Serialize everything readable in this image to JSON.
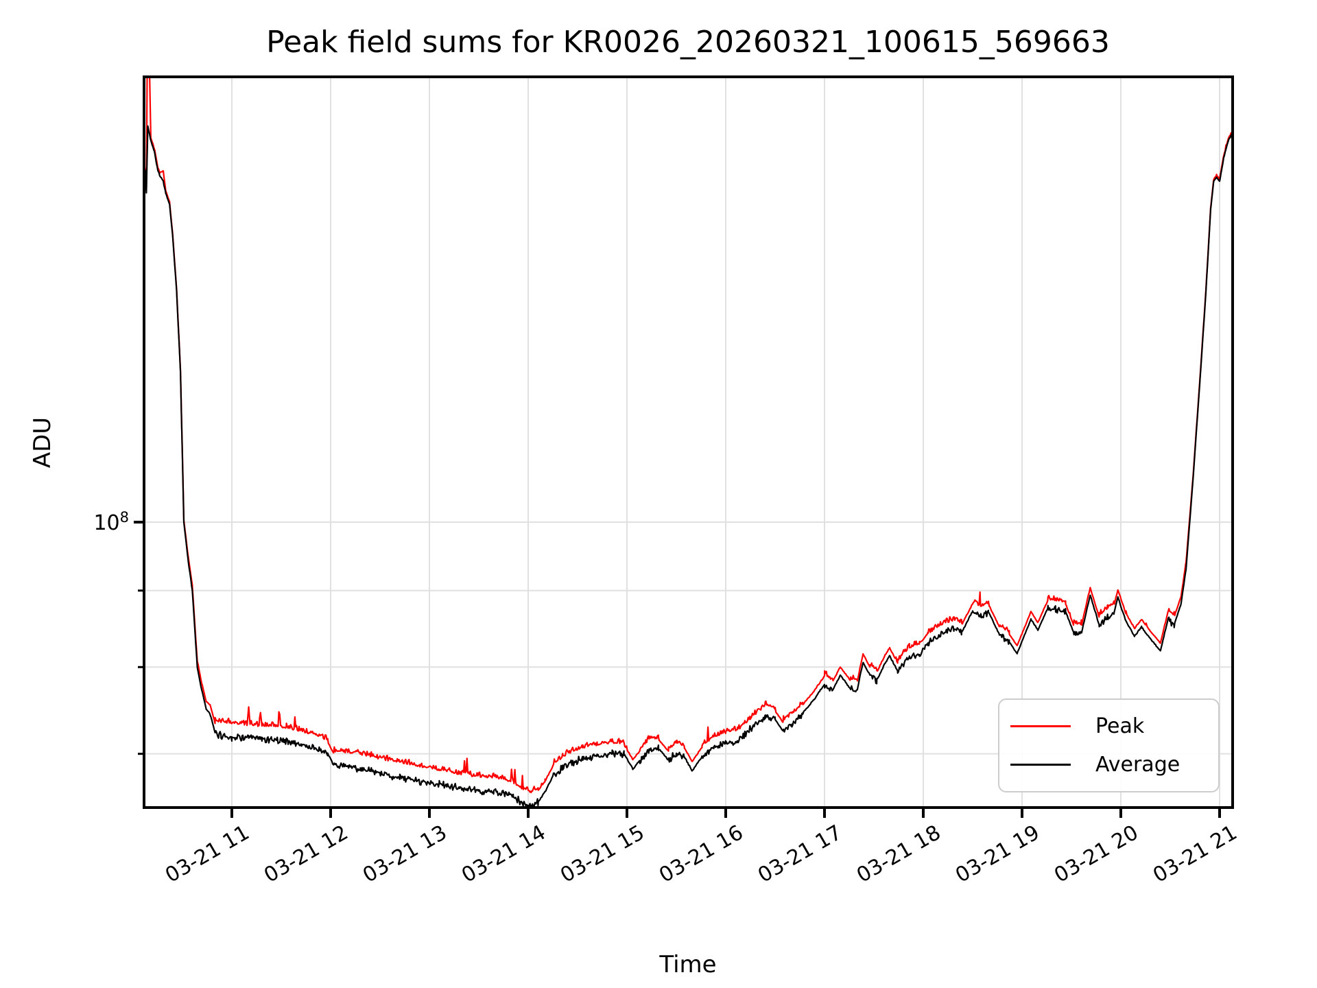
{
  "chart_data": {
    "type": "line",
    "title": "Peak field sums for KR0026_20260321_100615_569663",
    "xlabel": "Time",
    "ylabel": "ADU",
    "yscale": "log",
    "grid": true,
    "ylim": [
      64400000,
      198500000
    ],
    "xlim_hours": [
      10.108,
      21.132
    ],
    "x_tick_hours": [
      11,
      12,
      13,
      14,
      15,
      16,
      17,
      18,
      19,
      20,
      21
    ],
    "x_tick_labels": [
      "03-21 11",
      "03-21 12",
      "03-21 13",
      "03-21 14",
      "03-21 15",
      "03-21 16",
      "03-21 17",
      "03-21 18",
      "03-21 19",
      "03-21 20",
      "03-21 21"
    ],
    "y_major_tick": {
      "value": 100000000,
      "label_base": "10",
      "label_exp": "8"
    },
    "y_minor_ticks": [
      90000000,
      80000000,
      70000000
    ],
    "legend": {
      "position": "lower right",
      "entries": [
        {
          "label": "Peak",
          "color": "#ff0000"
        },
        {
          "label": "Average",
          "color": "#000000"
        }
      ]
    },
    "series": [
      {
        "name": "Peak",
        "color": "#ff0000",
        "linewidth": 2.2
      },
      {
        "name": "Average",
        "color": "#000000",
        "linewidth": 2.2
      }
    ],
    "points_format": [
      "hour_of_day",
      "average_x1e7_ADU",
      "peak_x1e7_ADU"
    ],
    "points": [
      [
        10.125,
        17.2,
        17.25
      ],
      [
        10.135,
        16.6,
        16.65
      ],
      [
        10.149,
        18.4,
        23.0
      ],
      [
        10.18,
        18.0,
        18.05
      ],
      [
        10.215,
        17.7,
        17.75
      ],
      [
        10.25,
        17.2,
        17.25
      ],
      [
        10.27,
        17.05,
        17.1
      ],
      [
        10.306,
        16.9,
        17.15
      ],
      [
        10.33,
        16.6,
        16.65
      ],
      [
        10.37,
        16.3,
        16.35
      ],
      [
        10.4,
        15.56,
        15.6
      ],
      [
        10.44,
        14.3,
        14.33
      ],
      [
        10.48,
        12.6,
        12.63
      ],
      [
        10.514,
        10.0,
        10.03
      ],
      [
        10.556,
        9.45,
        9.5
      ],
      [
        10.6,
        9.0,
        9.06
      ],
      [
        10.65,
        8.0,
        8.07
      ],
      [
        10.69,
        7.75,
        7.82
      ],
      [
        10.74,
        7.5,
        7.58
      ],
      [
        10.78,
        7.44,
        7.54
      ],
      [
        10.83,
        7.23,
        7.33
      ],
      [
        10.89,
        7.2,
        7.32
      ],
      [
        11.0,
        7.18,
        7.31
      ],
      [
        11.1,
        7.18,
        7.3
      ],
      [
        11.155,
        7.17,
        7.29
      ],
      [
        11.17,
        7.18,
        7.48
      ],
      [
        11.185,
        7.17,
        7.29
      ],
      [
        11.275,
        7.17,
        7.28
      ],
      [
        11.29,
        7.16,
        7.42
      ],
      [
        11.305,
        7.16,
        7.28
      ],
      [
        11.4,
        7.16,
        7.28
      ],
      [
        11.55,
        7.14,
        7.26
      ],
      [
        11.7,
        7.1,
        7.22
      ],
      [
        11.85,
        7.06,
        7.18
      ],
      [
        11.97,
        7.0,
        7.12
      ],
      [
        12.03,
        6.88,
        7.0
      ],
      [
        12.15,
        6.87,
        6.99
      ],
      [
        12.3,
        6.84,
        6.97
      ],
      [
        12.5,
        6.79,
        6.92
      ],
      [
        12.7,
        6.75,
        6.88
      ],
      [
        12.9,
        6.71,
        6.84
      ],
      [
        13.1,
        6.68,
        6.8
      ],
      [
        13.3,
        6.64,
        6.76
      ],
      [
        13.5,
        6.61,
        6.73
      ],
      [
        13.65,
        6.6,
        6.72
      ],
      [
        13.75,
        6.59,
        6.71
      ],
      [
        13.85,
        6.55,
        6.67
      ],
      [
        13.95,
        6.48,
        6.6
      ],
      [
        14.03,
        6.46,
        6.57
      ],
      [
        14.1,
        6.5,
        6.61
      ],
      [
        14.17,
        6.6,
        6.7
      ],
      [
        14.25,
        6.76,
        6.86
      ],
      [
        14.35,
        6.85,
        6.94
      ],
      [
        14.45,
        6.91,
        7.0
      ],
      [
        14.55,
        6.95,
        7.04
      ],
      [
        14.7,
        6.98,
        7.07
      ],
      [
        14.85,
        7.0,
        7.09
      ],
      [
        14.97,
        7.0,
        7.09
      ],
      [
        15.06,
        6.84,
        6.93
      ],
      [
        15.13,
        6.93,
        7.02
      ],
      [
        15.22,
        7.03,
        7.12
      ],
      [
        15.32,
        7.06,
        7.15
      ],
      [
        15.42,
        6.93,
        7.02
      ],
      [
        15.5,
        7.0,
        7.09
      ],
      [
        15.58,
        6.97,
        7.06
      ],
      [
        15.66,
        6.82,
        6.91
      ],
      [
        15.76,
        6.97,
        7.06
      ],
      [
        15.88,
        7.07,
        7.16
      ],
      [
        16.0,
        7.11,
        7.2
      ],
      [
        16.12,
        7.14,
        7.23
      ],
      [
        16.25,
        7.27,
        7.36
      ],
      [
        16.4,
        7.42,
        7.51
      ],
      [
        16.5,
        7.38,
        7.47
      ],
      [
        16.58,
        7.25,
        7.34
      ],
      [
        16.67,
        7.32,
        7.41
      ],
      [
        16.78,
        7.45,
        7.54
      ],
      [
        16.9,
        7.62,
        7.71
      ],
      [
        17.0,
        7.79,
        7.88
      ],
      [
        17.08,
        7.72,
        7.81
      ],
      [
        17.16,
        7.9,
        7.99
      ],
      [
        17.26,
        7.74,
        7.83
      ],
      [
        17.33,
        7.72,
        7.81
      ],
      [
        17.39,
        8.06,
        8.15
      ],
      [
        17.46,
        7.9,
        7.99
      ],
      [
        17.53,
        7.84,
        7.93
      ],
      [
        17.61,
        8.04,
        8.13
      ],
      [
        17.66,
        8.14,
        8.23
      ],
      [
        17.74,
        7.95,
        8.04
      ],
      [
        17.86,
        8.12,
        8.21
      ],
      [
        17.96,
        8.17,
        8.26
      ],
      [
        18.05,
        8.3,
        8.39
      ],
      [
        18.18,
        8.42,
        8.51
      ],
      [
        18.31,
        8.48,
        8.57
      ],
      [
        18.39,
        8.44,
        8.53
      ],
      [
        18.5,
        8.72,
        8.81
      ],
      [
        18.58,
        8.66,
        8.75
      ],
      [
        18.66,
        8.71,
        8.8
      ],
      [
        18.77,
        8.41,
        8.5
      ],
      [
        18.87,
        8.32,
        8.41
      ],
      [
        18.95,
        8.17,
        8.26
      ],
      [
        19.09,
        8.61,
        8.7
      ],
      [
        19.16,
        8.47,
        8.56
      ],
      [
        19.26,
        8.76,
        8.85
      ],
      [
        19.34,
        8.74,
        8.83
      ],
      [
        19.44,
        8.72,
        8.81
      ],
      [
        19.52,
        8.44,
        8.53
      ],
      [
        19.6,
        8.42,
        8.51
      ],
      [
        19.69,
        8.94,
        9.03
      ],
      [
        19.78,
        8.54,
        8.63
      ],
      [
        19.87,
        8.64,
        8.73
      ],
      [
        19.93,
        8.69,
        8.78
      ],
      [
        19.97,
        8.91,
        9.0
      ],
      [
        20.05,
        8.59,
        8.68
      ],
      [
        20.14,
        8.39,
        8.48
      ],
      [
        20.21,
        8.51,
        8.6
      ],
      [
        20.29,
        8.37,
        8.46
      ],
      [
        20.4,
        8.2,
        8.29
      ],
      [
        20.48,
        8.62,
        8.71
      ],
      [
        20.54,
        8.54,
        8.63
      ],
      [
        20.61,
        8.82,
        8.91
      ],
      [
        20.66,
        9.3,
        9.39
      ],
      [
        20.73,
        10.66,
        10.7
      ],
      [
        20.8,
        12.4,
        12.44
      ],
      [
        20.86,
        14.2,
        14.24
      ],
      [
        20.91,
        16.2,
        16.24
      ],
      [
        20.94,
        16.9,
        16.94
      ],
      [
        20.97,
        17.0,
        17.04
      ],
      [
        21.0,
        16.9,
        16.94
      ],
      [
        21.04,
        17.5,
        17.54
      ],
      [
        21.09,
        18.0,
        18.04
      ],
      [
        21.13,
        18.2,
        18.24
      ]
    ],
    "colors": {
      "grid": "#e0e0e0",
      "spine": "#000000",
      "background": "#ffffff",
      "peak_line": "#ff0000",
      "average_line": "#000000"
    }
  }
}
